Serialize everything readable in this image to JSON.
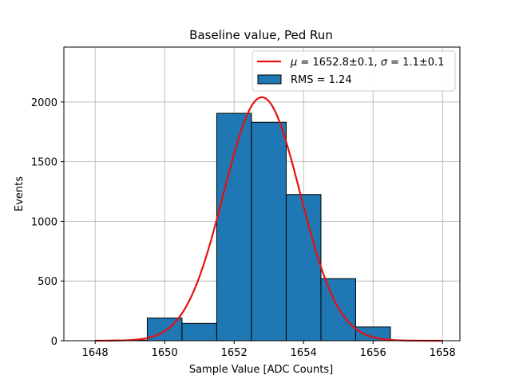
{
  "chart_data": {
    "type": "bar",
    "title": "Baseline value, Ped Run",
    "xlabel": "Sample Value [ADC Counts]",
    "ylabel": "Events",
    "xlim": [
      1647.1,
      1658.5
    ],
    "ylim": [
      0,
      2460
    ],
    "xticks": [
      1648,
      1650,
      1652,
      1654,
      1656,
      1658
    ],
    "yticks": [
      0,
      500,
      1000,
      1500,
      2000
    ],
    "grid": true,
    "legend_position": "top-right",
    "colors": {
      "bar": "#1f77b4",
      "fit": "#e6110f",
      "grid": "#b0b0b0"
    },
    "histogram": {
      "name": "RMS = 1.24",
      "bins": [
        {
          "x0": 1647.5,
          "x1": 1648.5,
          "value": 0
        },
        {
          "x0": 1648.5,
          "x1": 1649.5,
          "value": 5
        },
        {
          "x0": 1649.5,
          "x1": 1650.5,
          "value": 190
        },
        {
          "x0": 1650.5,
          "x1": 1651.5,
          "value": 145
        },
        {
          "x0": 1651.5,
          "x1": 1652.5,
          "value": 1905
        },
        {
          "x0": 1652.5,
          "x1": 1653.5,
          "value": 1830
        },
        {
          "x0": 1653.5,
          "x1": 1654.5,
          "value": 1225
        },
        {
          "x0": 1654.5,
          "x1": 1655.5,
          "value": 520
        },
        {
          "x0": 1655.5,
          "x1": 1656.5,
          "value": 115
        },
        {
          "x0": 1656.5,
          "x1": 1657.5,
          "value": 0
        },
        {
          "x0": 1657.5,
          "x1": 1658.5,
          "value": 0
        }
      ]
    },
    "fit": {
      "name_parts": {
        "mu": "μ",
        "mu_val": " = 1652.8±0.1, ",
        "sigma": "σ",
        "sigma_val": " = 1.1±0.1"
      },
      "mu": 1652.8,
      "sigma": 1.1,
      "amplitude": 2040,
      "x_range": [
        1648.0,
        1658.0
      ]
    }
  }
}
